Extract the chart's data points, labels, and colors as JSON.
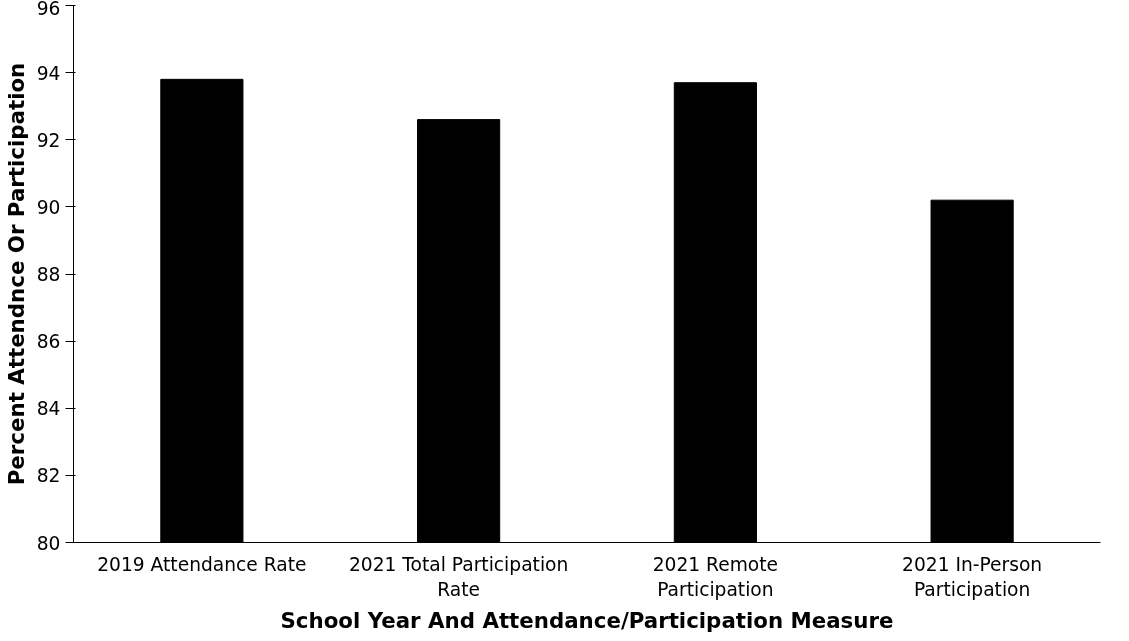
{
  "chart_data": {
    "type": "bar",
    "xlabel": "School Year And Attendance/Participation Measure",
    "ylabel": "Percent Attendnce Or Participation",
    "categories": [
      "2019 Attendance Rate",
      "2021 Total Participation Rate",
      "2021 Remote Participation",
      "2021 In-Person Participation"
    ],
    "values": [
      93.8,
      92.6,
      93.7,
      90.2
    ],
    "color": "#000000",
    "ylim": [
      80,
      96
    ],
    "yticks": [
      80,
      82,
      84,
      86,
      88,
      90,
      92,
      94,
      96
    ],
    "grid": false
  }
}
